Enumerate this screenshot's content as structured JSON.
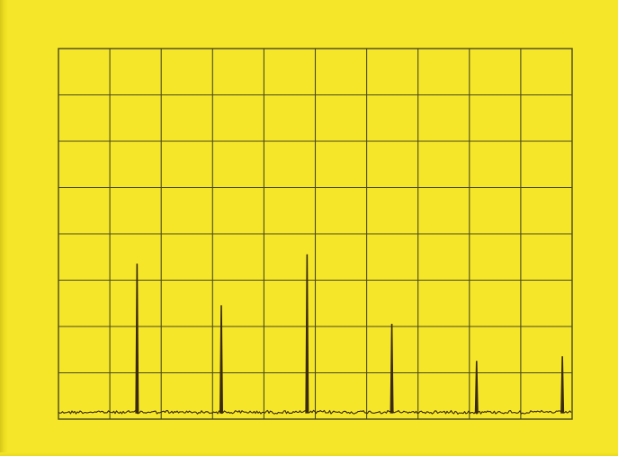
{
  "colors": {
    "background": "#f6e62a",
    "grid": "#4a4a1c",
    "trace": "#3a2a12"
  },
  "chart_data": {
    "type": "line",
    "title": "",
    "xlabel": "",
    "ylabel": "",
    "grid": true,
    "xlim": [
      0,
      10
    ],
    "ylim": [
      0,
      8
    ],
    "x_divisions": 10,
    "y_divisions": 8,
    "baseline": 0.15,
    "peaks": [
      {
        "x": 1.53,
        "y": 3.35
      },
      {
        "x": 3.17,
        "y": 2.45
      },
      {
        "x": 4.84,
        "y": 3.55
      },
      {
        "x": 6.49,
        "y": 2.05
      },
      {
        "x": 8.14,
        "y": 1.25
      },
      {
        "x": 9.81,
        "y": 1.35
      }
    ]
  }
}
